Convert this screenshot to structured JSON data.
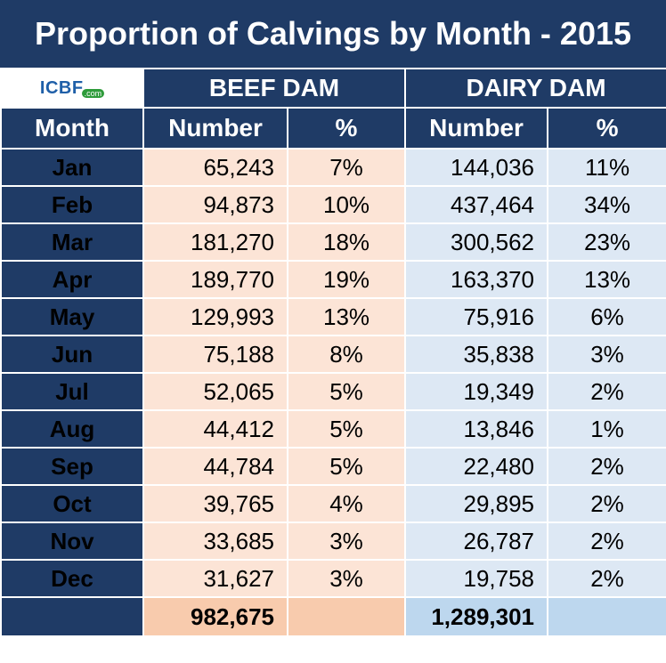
{
  "chart_data": {
    "type": "table",
    "title": "Proportion of Calvings by Month - 2015",
    "logo_text": "ICBF",
    "logo_subtext": ".com",
    "group_headers": [
      "BEEF DAM",
      "DAIRY DAM"
    ],
    "column_headers": [
      "Month",
      "Number",
      "%",
      "Number",
      "%"
    ],
    "rows": [
      {
        "month": "Jan",
        "beef_number": "65,243",
        "beef_pct": "7%",
        "dairy_number": "144,036",
        "dairy_pct": "11%"
      },
      {
        "month": "Feb",
        "beef_number": "94,873",
        "beef_pct": "10%",
        "dairy_number": "437,464",
        "dairy_pct": "34%"
      },
      {
        "month": "Mar",
        "beef_number": "181,270",
        "beef_pct": "18%",
        "dairy_number": "300,562",
        "dairy_pct": "23%"
      },
      {
        "month": "Apr",
        "beef_number": "189,770",
        "beef_pct": "19%",
        "dairy_number": "163,370",
        "dairy_pct": "13%"
      },
      {
        "month": "May",
        "beef_number": "129,993",
        "beef_pct": "13%",
        "dairy_number": "75,916",
        "dairy_pct": "6%"
      },
      {
        "month": "Jun",
        "beef_number": "75,188",
        "beef_pct": "8%",
        "dairy_number": "35,838",
        "dairy_pct": "3%"
      },
      {
        "month": "Jul",
        "beef_number": "52,065",
        "beef_pct": "5%",
        "dairy_number": "19,349",
        "dairy_pct": "2%"
      },
      {
        "month": "Aug",
        "beef_number": "44,412",
        "beef_pct": "5%",
        "dairy_number": "13,846",
        "dairy_pct": "1%"
      },
      {
        "month": "Sep",
        "beef_number": "44,784",
        "beef_pct": "5%",
        "dairy_number": "22,480",
        "dairy_pct": "2%"
      },
      {
        "month": "Oct",
        "beef_number": "39,765",
        "beef_pct": "4%",
        "dairy_number": "29,895",
        "dairy_pct": "2%"
      },
      {
        "month": "Nov",
        "beef_number": "33,685",
        "beef_pct": "3%",
        "dairy_number": "26,787",
        "dairy_pct": "2%"
      },
      {
        "month": "Dec",
        "beef_number": "31,627",
        "beef_pct": "3%",
        "dairy_number": "19,758",
        "dairy_pct": "2%"
      }
    ],
    "totals": {
      "beef_number": "982,675",
      "dairy_number": "1,289,301"
    }
  },
  "colors": {
    "header_navy": "#1f3b66",
    "beef_fill": "#fce4d6",
    "dairy_fill": "#dde8f4",
    "beef_total": "#f8cbad",
    "dairy_total": "#bdd7ee"
  }
}
